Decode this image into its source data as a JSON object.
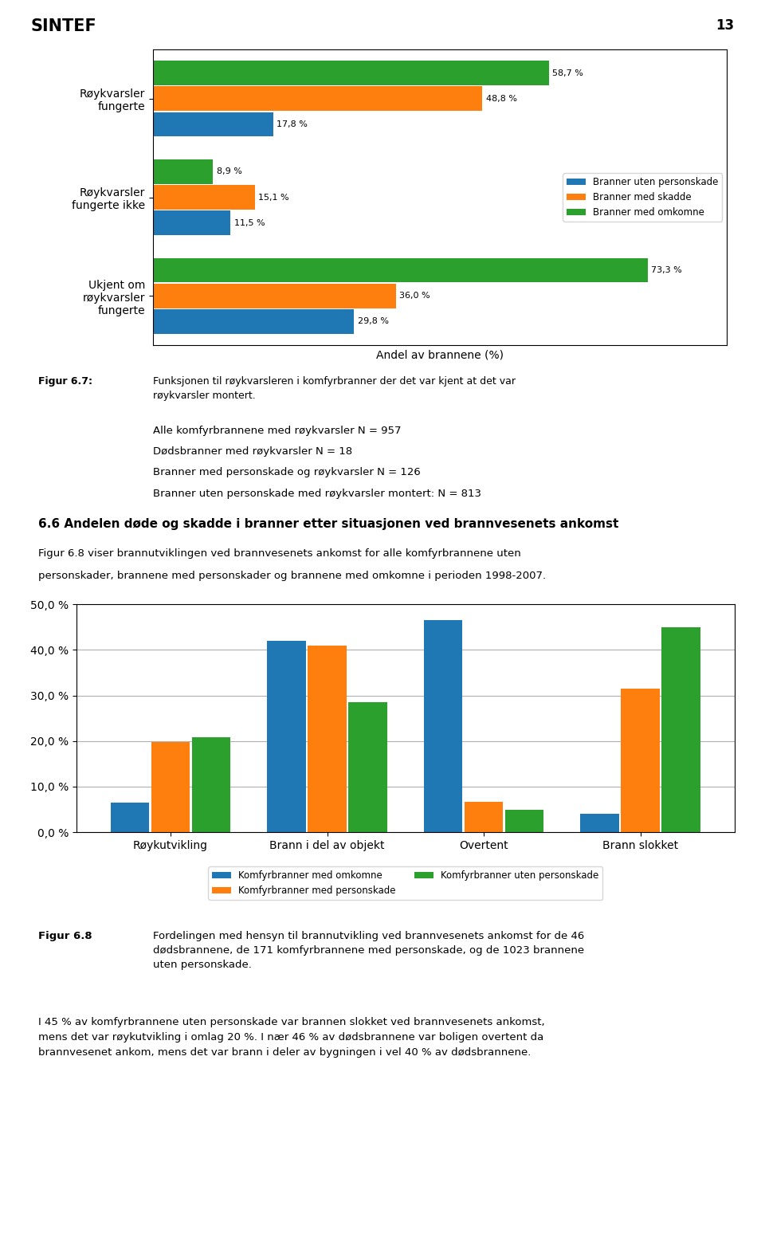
{
  "chart_data": [
    {
      "type": "bar",
      "orientation": "horizontal",
      "xlabel": "Andel av brannene (%)",
      "categories": [
        "Ukjent om\nrøykvarsler\nfungerte",
        "Røykvarsler\nfungerte ikke",
        "Røykvarsler\nfungerte"
      ],
      "series": [
        {
          "name": "Branner uten personskade",
          "values": [
            29.8,
            11.5,
            17.8
          ],
          "value_labels": [
            "29,8 %",
            "11,5 %",
            "17,8 %"
          ]
        },
        {
          "name": "Branner med skadde",
          "values": [
            36.0,
            15.1,
            48.8
          ],
          "value_labels": [
            "36,0 %",
            "15,1 %",
            "48,8 %"
          ]
        },
        {
          "name": "Branner med omkomne",
          "values": [
            73.3,
            8.9,
            58.7
          ],
          "value_labels": [
            "73,3 %",
            "8,9 %",
            "58,7 %"
          ]
        }
      ],
      "xlim": [
        0,
        85
      ],
      "tick_labels": "y",
      "data_labels": true,
      "legend": "center right",
      "annotations": [
        "SINTEF",
        "13",
        "Figur 6.7:",
        "Funksjonen til røykvarsleren i komfyrbranner der det var kjent at det var\nrøykvarsler montert.",
        "Alle komfyrbrannene med røykvarsler N = 957",
        "Dødsbranner med røykvarsler N = 18",
        "Branner med personskade og røykvarsler N = 126",
        "Branner uten personskade med røykvarsler montert: N = 813",
        "6.6 Andelen døde og skadde i branner etter situasjonen ved brannvesenets ankomst",
        "Figur 6.8 viser brannutviklingen ved brannvesenets ankomst for alle komfyrbrannene uten",
        "personskader, brannene med personskader og brannene med omkomne i perioden 1998-2007."
      ]
    },
    {
      "type": "bar",
      "categories": [
        "Røykutvikling",
        "Brann i del av objekt",
        "Overtent",
        "Brann slokket"
      ],
      "series": [
        {
          "name": "Komfyrbranner med omkomne",
          "values": [
            6.5,
            42.0,
            46.5,
            4.0
          ]
        },
        {
          "name": "Komfyrbranner med personskade",
          "values": [
            19.8,
            41.0,
            6.7,
            31.5
          ]
        },
        {
          "name": "Komfyrbranner uten personskade",
          "values": [
            20.9,
            28.6,
            5.0,
            45.0
          ]
        }
      ],
      "ylim": [
        0,
        50
      ],
      "yticks": [
        {
          "value": 0,
          "label": "0,0 %"
        },
        {
          "value": 10,
          "label": "10,0 %"
        },
        {
          "value": 20,
          "label": "20,0 %"
        },
        {
          "value": 30,
          "label": "30,0 %"
        },
        {
          "value": 40,
          "label": "40,0 %"
        },
        {
          "value": 50,
          "label": "50,0 %"
        }
      ],
      "grid": true,
      "legend": "upper center",
      "annotations": [
        "Figur 6.8",
        "Fordelingen med hensyn til brannutvikling ved brannvesenets ankomst for de 46\ndødsbrannene, de 171 komfyrbrannene med personskade, og de 1023 brannene\nuten personskade.",
        "I 45 % av komfyrbrannene uten personskade var brannen slokket ved brannvesenets ankomst,\nmens det var røykutvikling i omlag 20 %. I nær 46 % av dødsbrannene var boligen overtent da\nbrannvesenet ankom, mens det var brann i deler av bygningen i vel 40 % av dødsbrannene."
      ]
    }
  ]
}
